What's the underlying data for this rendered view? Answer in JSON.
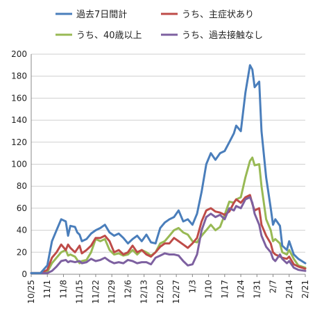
{
  "chart_data": {
    "type": "line",
    "title": "",
    "xlabel": "",
    "ylabel": "",
    "ylim": [
      0,
      200
    ],
    "yticks": [
      0,
      20,
      40,
      60,
      80,
      100,
      120,
      140,
      160,
      180,
      200
    ],
    "x_start": "10/25",
    "x_end": "2/21",
    "x_tick_labels": [
      "10/25",
      "11/1",
      "11/8",
      "11/15",
      "11/22",
      "11/29",
      "12/6",
      "12/13",
      "12/20",
      "12/27",
      "1/3",
      "1/10",
      "1/17",
      "1/24",
      "1/31",
      "2/7",
      "2/14",
      "2/21"
    ],
    "grid": {
      "horizontal": true,
      "vertical": false
    },
    "legend_position": "top",
    "series": [
      {
        "name": "過去7日間計",
        "color": "#4a7ebb",
        "points": [
          [
            "10/25",
            1
          ],
          [
            "10/29",
            1
          ],
          [
            "11/1",
            8
          ],
          [
            "11/3",
            30
          ],
          [
            "11/5",
            40
          ],
          [
            "11/7",
            50
          ],
          [
            "11/9",
            48
          ],
          [
            "11/10",
            35
          ],
          [
            "11/11",
            44
          ],
          [
            "11/13",
            43
          ],
          [
            "11/14",
            38
          ],
          [
            "11/15",
            36
          ],
          [
            "11/16",
            30
          ],
          [
            "11/18",
            32
          ],
          [
            "11/20",
            37
          ],
          [
            "11/22",
            40
          ],
          [
            "11/24",
            42
          ],
          [
            "11/26",
            45
          ],
          [
            "11/28",
            38
          ],
          [
            "11/30",
            35
          ],
          [
            "12/2",
            37
          ],
          [
            "12/4",
            33
          ],
          [
            "12/6",
            28
          ],
          [
            "12/8",
            32
          ],
          [
            "12/10",
            35
          ],
          [
            "12/12",
            30
          ],
          [
            "12/14",
            36
          ],
          [
            "12/16",
            29
          ],
          [
            "12/18",
            28
          ],
          [
            "12/20",
            42
          ],
          [
            "12/22",
            47
          ],
          [
            "12/24",
            50
          ],
          [
            "12/26",
            52
          ],
          [
            "12/28",
            58
          ],
          [
            "12/30",
            48
          ],
          [
            "1/1",
            50
          ],
          [
            "1/3",
            45
          ],
          [
            "1/5",
            55
          ],
          [
            "1/7",
            75
          ],
          [
            "1/9",
            100
          ],
          [
            "1/11",
            110
          ],
          [
            "1/13",
            104
          ],
          [
            "1/15",
            110
          ],
          [
            "1/17",
            112
          ],
          [
            "1/19",
            120
          ],
          [
            "1/21",
            128
          ],
          [
            "1/22",
            135
          ],
          [
            "1/24",
            130
          ],
          [
            "1/26",
            165
          ],
          [
            "1/28",
            190
          ],
          [
            "1/29",
            186
          ],
          [
            "1/30",
            170
          ],
          [
            "2/1",
            175
          ],
          [
            "2/2",
            130
          ],
          [
            "2/4",
            88
          ],
          [
            "2/6",
            60
          ],
          [
            "2/7",
            45
          ],
          [
            "2/8",
            50
          ],
          [
            "2/10",
            44
          ],
          [
            "2/11",
            26
          ],
          [
            "2/13",
            22
          ],
          [
            "2/14",
            30
          ],
          [
            "2/16",
            18
          ],
          [
            "2/18",
            14
          ],
          [
            "2/21",
            10
          ]
        ]
      },
      {
        "name": "うち、主症状あり",
        "color": "#be4b48",
        "points": [
          [
            "10/25",
            1
          ],
          [
            "10/29",
            1
          ],
          [
            "11/1",
            4
          ],
          [
            "11/3",
            15
          ],
          [
            "11/5",
            20
          ],
          [
            "11/7",
            27
          ],
          [
            "11/9",
            22
          ],
          [
            "11/10",
            27
          ],
          [
            "11/11",
            24
          ],
          [
            "11/13",
            20
          ],
          [
            "11/15",
            26
          ],
          [
            "11/16",
            19
          ],
          [
            "11/18",
            22
          ],
          [
            "11/20",
            26
          ],
          [
            "11/22",
            33
          ],
          [
            "11/24",
            33
          ],
          [
            "11/26",
            35
          ],
          [
            "11/28",
            30
          ],
          [
            "11/30",
            20
          ],
          [
            "12/2",
            22
          ],
          [
            "12/4",
            18
          ],
          [
            "12/6",
            20
          ],
          [
            "12/8",
            26
          ],
          [
            "12/10",
            20
          ],
          [
            "12/12",
            22
          ],
          [
            "12/14",
            18
          ],
          [
            "12/16",
            16
          ],
          [
            "12/18",
            20
          ],
          [
            "12/20",
            25
          ],
          [
            "12/22",
            28
          ],
          [
            "12/24",
            28
          ],
          [
            "12/26",
            33
          ],
          [
            "12/28",
            30
          ],
          [
            "12/30",
            27
          ],
          [
            "1/1",
            24
          ],
          [
            "1/3",
            28
          ],
          [
            "1/5",
            33
          ],
          [
            "1/7",
            48
          ],
          [
            "1/9",
            58
          ],
          [
            "1/11",
            60
          ],
          [
            "1/13",
            57
          ],
          [
            "1/15",
            56
          ],
          [
            "1/17",
            54
          ],
          [
            "1/19",
            57
          ],
          [
            "1/21",
            65
          ],
          [
            "1/22",
            68
          ],
          [
            "1/24",
            65
          ],
          [
            "1/26",
            70
          ],
          [
            "1/28",
            72
          ],
          [
            "1/29",
            64
          ],
          [
            "1/30",
            58
          ],
          [
            "2/1",
            60
          ],
          [
            "2/2",
            45
          ],
          [
            "2/4",
            35
          ],
          [
            "2/6",
            28
          ],
          [
            "2/7",
            20
          ],
          [
            "2/8",
            18
          ],
          [
            "2/10",
            16
          ],
          [
            "2/11",
            15
          ],
          [
            "2/13",
            14
          ],
          [
            "2/14",
            16
          ],
          [
            "2/16",
            9
          ],
          [
            "2/18",
            7
          ],
          [
            "2/21",
            5
          ]
        ]
      },
      {
        "name": "うち、40歳以上",
        "color": "#98b954",
        "points": [
          [
            "10/25",
            1
          ],
          [
            "10/29",
            1
          ],
          [
            "11/1",
            2
          ],
          [
            "11/3",
            10
          ],
          [
            "11/5",
            15
          ],
          [
            "11/7",
            20
          ],
          [
            "11/9",
            22
          ],
          [
            "11/10",
            17
          ],
          [
            "11/11",
            18
          ],
          [
            "11/13",
            16
          ],
          [
            "11/15",
            10
          ],
          [
            "11/16",
            12
          ],
          [
            "11/18",
            13
          ],
          [
            "11/20",
            20
          ],
          [
            "11/22",
            32
          ],
          [
            "11/24",
            30
          ],
          [
            "11/26",
            32
          ],
          [
            "11/28",
            22
          ],
          [
            "11/30",
            18
          ],
          [
            "12/2",
            19
          ],
          [
            "12/4",
            17
          ],
          [
            "12/6",
            18
          ],
          [
            "12/8",
            22
          ],
          [
            "12/10",
            18
          ],
          [
            "12/12",
            22
          ],
          [
            "12/14",
            20
          ],
          [
            "12/16",
            17
          ],
          [
            "12/18",
            20
          ],
          [
            "12/20",
            28
          ],
          [
            "12/22",
            30
          ],
          [
            "12/24",
            35
          ],
          [
            "12/26",
            40
          ],
          [
            "12/28",
            42
          ],
          [
            "12/30",
            38
          ],
          [
            "1/1",
            36
          ],
          [
            "1/3",
            30
          ],
          [
            "1/5",
            29
          ],
          [
            "1/7",
            35
          ],
          [
            "1/9",
            40
          ],
          [
            "1/11",
            45
          ],
          [
            "1/13",
            40
          ],
          [
            "1/15",
            43
          ],
          [
            "1/17",
            54
          ],
          [
            "1/19",
            66
          ],
          [
            "1/21",
            65
          ],
          [
            "1/22",
            68
          ],
          [
            "1/24",
            70
          ],
          [
            "1/26",
            88
          ],
          [
            "1/28",
            103
          ],
          [
            "1/29",
            106
          ],
          [
            "1/30",
            99
          ],
          [
            "2/1",
            100
          ],
          [
            "2/2",
            80
          ],
          [
            "2/4",
            50
          ],
          [
            "2/6",
            40
          ],
          [
            "2/7",
            30
          ],
          [
            "2/8",
            32
          ],
          [
            "2/10",
            28
          ],
          [
            "2/11",
            20
          ],
          [
            "2/13",
            18
          ],
          [
            "2/14",
            22
          ],
          [
            "2/16",
            14
          ],
          [
            "2/18",
            8
          ],
          [
            "2/21",
            6
          ]
        ]
      },
      {
        "name": "うち、過去接触なし",
        "color": "#7d60a0",
        "points": [
          [
            "10/25",
            1
          ],
          [
            "10/29",
            1
          ],
          [
            "11/1",
            1
          ],
          [
            "11/3",
            3
          ],
          [
            "11/5",
            7
          ],
          [
            "11/7",
            12
          ],
          [
            "11/9",
            13
          ],
          [
            "11/10",
            11
          ],
          [
            "11/11",
            12
          ],
          [
            "11/13",
            11
          ],
          [
            "11/15",
            12
          ],
          [
            "11/16",
            10
          ],
          [
            "11/18",
            11
          ],
          [
            "11/20",
            14
          ],
          [
            "11/22",
            12
          ],
          [
            "11/24",
            13
          ],
          [
            "11/26",
            15
          ],
          [
            "11/28",
            12
          ],
          [
            "11/30",
            10
          ],
          [
            "12/2",
            11
          ],
          [
            "12/4",
            10
          ],
          [
            "12/6",
            13
          ],
          [
            "12/8",
            12
          ],
          [
            "12/10",
            10
          ],
          [
            "12/12",
            11
          ],
          [
            "12/14",
            11
          ],
          [
            "12/16",
            9
          ],
          [
            "12/18",
            15
          ],
          [
            "12/20",
            17
          ],
          [
            "12/22",
            19
          ],
          [
            "12/24",
            18
          ],
          [
            "12/26",
            18
          ],
          [
            "12/28",
            17
          ],
          [
            "12/30",
            12
          ],
          [
            "1/1",
            8
          ],
          [
            "1/3",
            9
          ],
          [
            "1/5",
            18
          ],
          [
            "1/7",
            40
          ],
          [
            "1/9",
            52
          ],
          [
            "1/11",
            55
          ],
          [
            "1/13",
            52
          ],
          [
            "1/15",
            54
          ],
          [
            "1/17",
            50
          ],
          [
            "1/19",
            60
          ],
          [
            "1/21",
            58
          ],
          [
            "1/22",
            62
          ],
          [
            "1/24",
            60
          ],
          [
            "1/26",
            68
          ],
          [
            "1/28",
            70
          ],
          [
            "1/29",
            65
          ],
          [
            "1/30",
            55
          ],
          [
            "2/1",
            45
          ],
          [
            "2/2",
            35
          ],
          [
            "2/4",
            25
          ],
          [
            "2/6",
            20
          ],
          [
            "2/7",
            14
          ],
          [
            "2/8",
            12
          ],
          [
            "2/10",
            18
          ],
          [
            "2/11",
            14
          ],
          [
            "2/13",
            10
          ],
          [
            "2/14",
            12
          ],
          [
            "2/16",
            6
          ],
          [
            "2/18",
            4
          ],
          [
            "2/21",
            3
          ]
        ]
      }
    ]
  }
}
